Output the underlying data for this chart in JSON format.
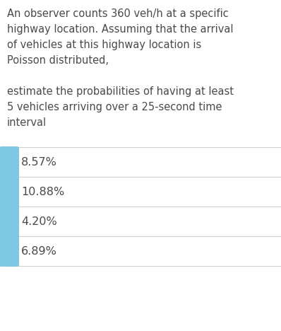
{
  "background_color": "#ffffff",
  "question_lines": [
    "An observer counts 360 veh/h at a specific",
    "highway location. Assuming that the arrival",
    "of vehicles at this highway location is",
    "Poisson distributed,",
    "",
    "estimate the probabilities of having at least",
    "5 vehicles arriving over a 25-second time",
    "interval"
  ],
  "options": [
    "8.57%",
    "10.88%",
    "4.20%",
    "6.89%"
  ],
  "option_color": "#7ec8e3",
  "text_color": "#4a4a4a",
  "separator_color": "#d0d0d0",
  "font_size_question": 10.5,
  "font_size_option": 11.5,
  "fig_width": 3.98,
  "fig_height": 4.68,
  "dpi": 100
}
